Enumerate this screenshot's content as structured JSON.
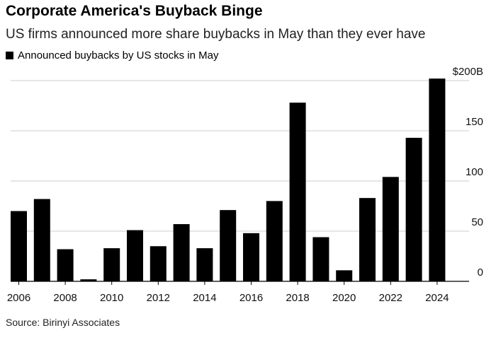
{
  "title": "Corporate America's Buyback Binge",
  "subtitle": "US firms announced more share buybacks in May than they ever have",
  "source": "Source: Birinyi Associates",
  "chart_data": {
    "type": "bar",
    "title": "Corporate America's Buyback Binge",
    "subtitle": "US firms announced more share buybacks in May than they ever have",
    "categories": [
      "2006",
      "2007",
      "2008",
      "2009",
      "2010",
      "2011",
      "2012",
      "2013",
      "2014",
      "2015",
      "2016",
      "2017",
      "2018",
      "2019",
      "2020",
      "2021",
      "2022",
      "2023",
      "2024"
    ],
    "series": [
      {
        "name": "Announced buybacks by US stocks in May",
        "color": "#000000",
        "values": [
          70,
          82,
          32,
          2,
          33,
          51,
          35,
          57,
          33,
          71,
          48,
          80,
          178,
          44,
          11,
          83,
          104,
          143,
          202
        ]
      }
    ],
    "x_tick_labels": [
      "2006",
      "2008",
      "2010",
      "2012",
      "2014",
      "2016",
      "2018",
      "2020",
      "2022",
      "2024"
    ],
    "y_tick_labels": [
      "0",
      "50",
      "100",
      "150",
      "$200B"
    ],
    "y_ticks": [
      0,
      50,
      100,
      150,
      200
    ],
    "ylim": [
      0,
      200
    ],
    "y_axis_position": "right",
    "grid": true,
    "legend": "top-left"
  }
}
